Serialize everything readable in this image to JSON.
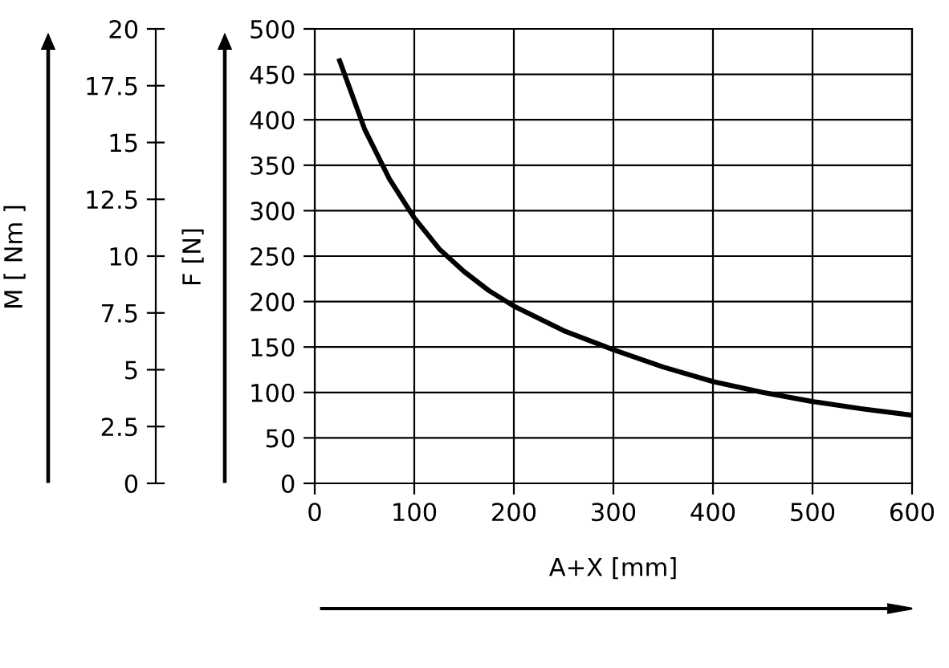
{
  "chart_data": {
    "type": "line",
    "xlabel": "A+X [mm]",
    "ylabel": "F [N]",
    "y2label": "M [ Nm ]",
    "x": [
      25,
      50,
      75,
      100,
      125,
      150,
      175,
      200,
      250,
      300,
      350,
      400,
      450,
      500,
      550,
      600
    ],
    "series": [
      {
        "color": "#000000",
        "values": [
          465,
          390,
          335,
          292,
          258,
          233,
          212,
          195,
          168,
          147,
          128,
          112,
          100,
          90,
          82,
          75
        ]
      }
    ],
    "xlim": [
      0,
      600
    ],
    "xticks": [
      0,
      100,
      200,
      300,
      400,
      500,
      600
    ],
    "ylim": [
      0,
      500
    ],
    "yticks": [
      0,
      50,
      100,
      150,
      200,
      250,
      300,
      350,
      400,
      450,
      500
    ],
    "y2lim": [
      0,
      20
    ],
    "y2ticks": [
      0,
      2.5,
      5,
      7.5,
      10,
      12.5,
      15,
      17.5,
      20
    ],
    "grid": true,
    "line_style": "solid",
    "marker": "none"
  }
}
